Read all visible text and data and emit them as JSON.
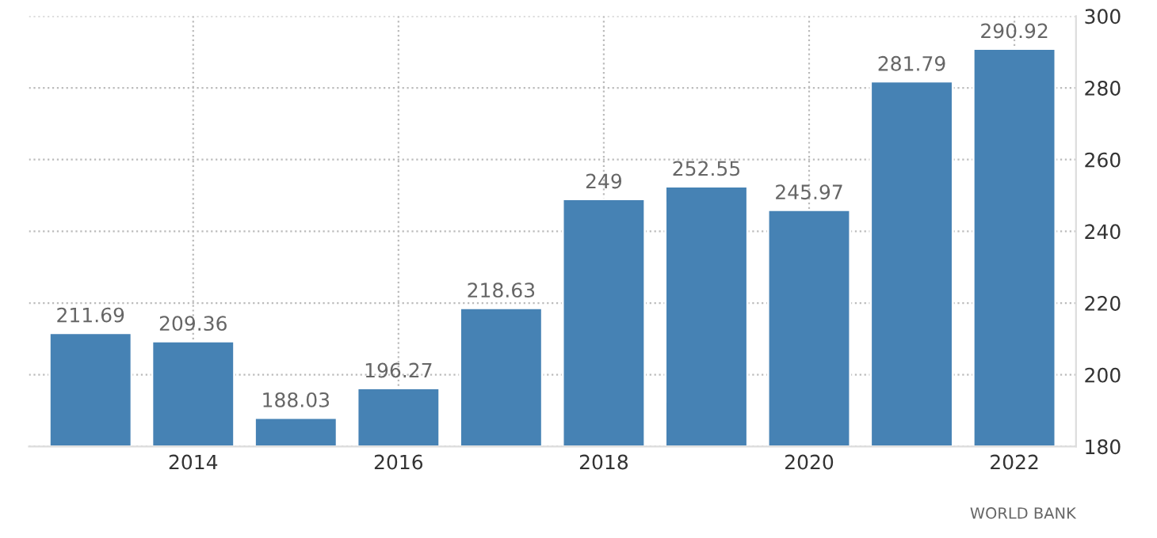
{
  "chart_data": {
    "type": "bar",
    "categories": [
      null,
      "2014",
      null,
      "2016",
      null,
      "2018",
      null,
      "2020",
      null,
      "2022"
    ],
    "values": [
      211.69,
      209.36,
      188.03,
      196.27,
      218.63,
      249,
      252.55,
      245.97,
      281.79,
      290.92
    ],
    "color": "#4682b4",
    "ylim": [
      180,
      300
    ],
    "yticks": [
      180,
      200,
      220,
      240,
      260,
      280,
      300
    ],
    "grid": true,
    "data_labels": true,
    "annotations": [
      "WORLD BANK"
    ]
  }
}
